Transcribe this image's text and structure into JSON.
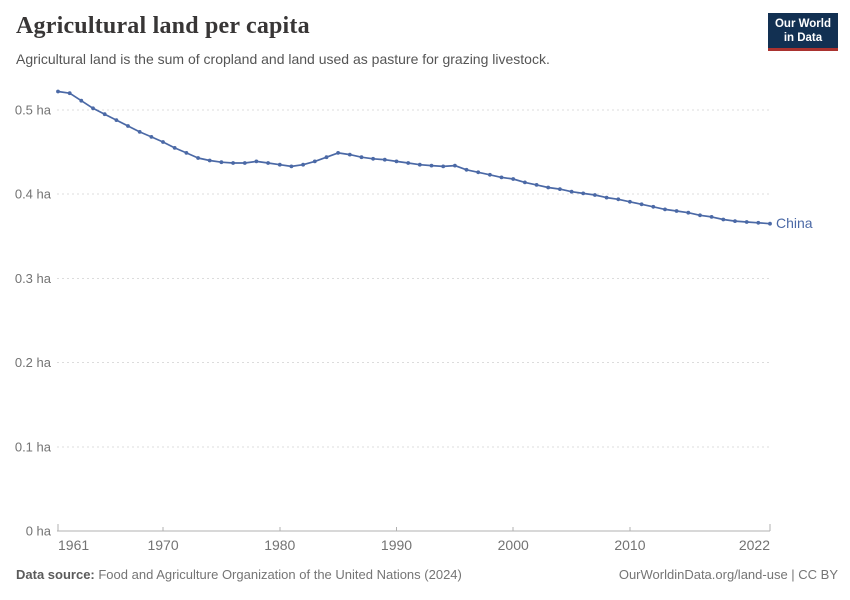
{
  "header": {
    "title": "Agricultural land per capita",
    "subtitle": "Agricultural land is the sum of cropland and land used as pasture for grazing livestock."
  },
  "logo": {
    "line1": "Our World",
    "line2": "in Data"
  },
  "footer": {
    "source_label": "Data source:",
    "source_text": " Food and Agriculture Organization of the United Nations (2024)",
    "link_text": "OurWorldinData.org/land-use | CC BY"
  },
  "colors": {
    "series_blue": "#4b69a6",
    "logo_background": "#123052",
    "logo_red_bar": "#aa322f",
    "gridline": "#dcdcdc",
    "axis": "#b0b0b0",
    "tick_label": "#737373"
  },
  "chart_data": {
    "type": "line",
    "title": "Agricultural land per capita",
    "xlabel": "",
    "ylabel": "",
    "unit": "ha",
    "grid": "horizontal-dashed",
    "legend_position": "end-of-line",
    "x_range": [
      1961,
      2022
    ],
    "ylim": [
      0,
      0.53
    ],
    "yticks": [
      {
        "value": 0.0,
        "label": "0 ha"
      },
      {
        "value": 0.1,
        "label": "0.1 ha"
      },
      {
        "value": 0.2,
        "label": "0.2 ha"
      },
      {
        "value": 0.3,
        "label": "0.3 ha"
      },
      {
        "value": 0.4,
        "label": "0.4 ha"
      },
      {
        "value": 0.5,
        "label": "0.5 ha"
      }
    ],
    "xticks": [
      {
        "year": 1961,
        "label": "1961"
      },
      {
        "year": 1970,
        "label": "1970"
      },
      {
        "year": 1980,
        "label": "1980"
      },
      {
        "year": 1990,
        "label": "1990"
      },
      {
        "year": 2000,
        "label": "2000"
      },
      {
        "year": 2010,
        "label": "2010"
      },
      {
        "year": 2022,
        "label": "2022"
      }
    ],
    "series": [
      {
        "name": "China",
        "color": "#4b69a6",
        "x": [
          1961,
          1962,
          1963,
          1964,
          1965,
          1966,
          1967,
          1968,
          1969,
          1970,
          1971,
          1972,
          1973,
          1974,
          1975,
          1976,
          1977,
          1978,
          1979,
          1980,
          1981,
          1982,
          1983,
          1984,
          1985,
          1986,
          1987,
          1988,
          1989,
          1990,
          1991,
          1992,
          1993,
          1994,
          1995,
          1996,
          1997,
          1998,
          1999,
          2000,
          2001,
          2002,
          2003,
          2004,
          2005,
          2006,
          2007,
          2008,
          2009,
          2010,
          2011,
          2012,
          2013,
          2014,
          2015,
          2016,
          2017,
          2018,
          2019,
          2020,
          2021,
          2022
        ],
        "values": [
          0.522,
          0.52,
          0.511,
          0.502,
          0.495,
          0.488,
          0.481,
          0.474,
          0.468,
          0.462,
          0.455,
          0.449,
          0.443,
          0.44,
          0.438,
          0.437,
          0.437,
          0.439,
          0.437,
          0.435,
          0.433,
          0.435,
          0.439,
          0.444,
          0.449,
          0.447,
          0.444,
          0.442,
          0.441,
          0.439,
          0.437,
          0.435,
          0.434,
          0.433,
          0.434,
          0.429,
          0.426,
          0.423,
          0.42,
          0.418,
          0.414,
          0.411,
          0.408,
          0.406,
          0.403,
          0.401,
          0.399,
          0.396,
          0.394,
          0.391,
          0.388,
          0.385,
          0.382,
          0.38,
          0.378,
          0.375,
          0.373,
          0.37,
          0.368,
          0.367,
          0.366,
          0.365
        ]
      }
    ]
  }
}
